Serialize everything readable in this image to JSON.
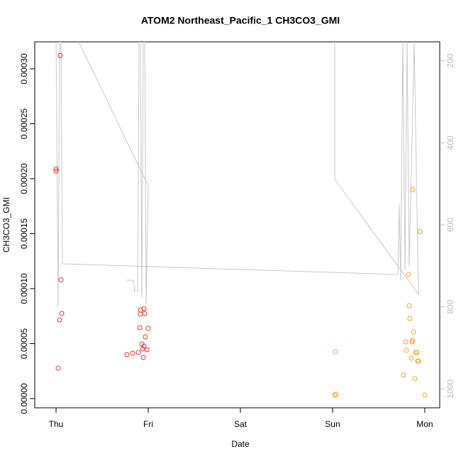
{
  "chart_data": {
    "type": "scatter",
    "title": "ATOM2 Northeast_Pacific_1 CH3CO3_GMI",
    "x_label": "Date",
    "y_label": "CH3CO3_GMI",
    "xlim": [
      -0.231,
      4.162
    ],
    "xticks": [
      {
        "value": 0,
        "label": "Thu"
      },
      {
        "value": 1,
        "label": "Fri"
      },
      {
        "value": 2,
        "label": "Sat"
      },
      {
        "value": 3,
        "label": "Sun"
      },
      {
        "value": 4,
        "label": "Mon"
      }
    ],
    "ylim": [
      -8.4e-06,
      0.0003245
    ],
    "yticks": [
      {
        "value": 0,
        "label": "0.00000"
      },
      {
        "value": 5e-05,
        "label": "0.00005"
      },
      {
        "value": 0.0001,
        "label": "0.00010"
      },
      {
        "value": 0.00015,
        "label": "0.00015"
      },
      {
        "value": 0.0002,
        "label": "0.00020"
      },
      {
        "value": 0.00025,
        "label": "0.00025"
      },
      {
        "value": 0.0003,
        "label": "0.00030"
      }
    ],
    "y2lim": [
      1046,
      154
    ],
    "y2ticks": [
      200,
      400,
      600,
      800,
      1000
    ],
    "series": [
      {
        "color": "#e8332b",
        "x": [
          0,
          0,
          0.046,
          0.054,
          0.062,
          0.038,
          0.023,
          0.769,
          0.831,
          0.892,
          0.915,
          0.915,
          0.954,
          0.962,
          0.908,
          1.0,
          0.969,
          0.931,
          0.954,
          0.938,
          0.985,
          0.946
        ],
        "y": [
          0.000209,
          0.000207,
          0.000312,
          0.000108,
          7.74e-05,
          7.16e-05,
          2.77e-05,
          4e-05,
          4.13e-05,
          4.19e-05,
          8.06e-05,
          7.68e-05,
          8.19e-05,
          7.74e-05,
          6.45e-05,
          6.39e-05,
          5.61e-05,
          4.97e-05,
          4.77e-05,
          4.52e-05,
          4.45e-05,
          3.74e-05
        ]
      },
      {
        "color": "#f5a020",
        "x": [
          3.031,
          3.023,
          3.038,
          3.869,
          3.946,
          3.823,
          3.831,
          3.838,
          3.877,
          3.869,
          3.862,
          3.792,
          3.8,
          3.9,
          3.915,
          3.854,
          3.923,
          3.931,
          3.769,
          3.892,
          4.0
        ],
        "y": [
          4.26e-05,
          3.2e-06,
          3.9e-06,
          0.00019,
          0.000152,
          0.000113,
          8.45e-05,
          7.29e-05,
          6.06e-05,
          5.29e-05,
          5.16e-05,
          5.16e-05,
          4.39e-05,
          4.19e-05,
          4.19e-05,
          3.68e-05,
          3.42e-05,
          3.42e-05,
          2.13e-05,
          1.81e-05,
          3.2e-06
        ]
      }
    ],
    "line": {
      "color": "#c8c8c8",
      "axis": "y2",
      "x": [
        0,
        0.023,
        0.038,
        0.054,
        0.069,
        3.708,
        3.723,
        3.738,
        3.762,
        3.785,
        3.808,
        3.831,
        3.885,
        3.931,
        3.023,
        3.023,
        null,
        0.246,
        1.0,
        0.977,
        0.962,
        0.946,
        0.931,
        0.915,
        0.9,
        0.885,
        0.854,
        0.838,
        0.762
      ],
      "y": [
        154,
        799,
        154,
        154,
        695,
        721,
        550,
        735,
        154,
        709,
        154,
        700,
        154,
        769,
        489,
        154,
        null,
        154,
        505,
        795,
        154,
        154,
        778,
        154,
        154,
        761,
        761,
        735,
        735
      ]
    }
  }
}
